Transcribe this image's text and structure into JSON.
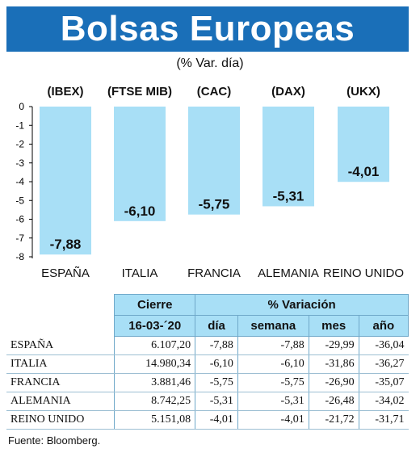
{
  "header": {
    "title": "Bolsas Europeas",
    "subtitle": "(% Var. día)"
  },
  "colors": {
    "title_bg": "#1a6fb8",
    "bar": "#a8dff6",
    "table_header_bg": "#a8dff6"
  },
  "chart_data": {
    "type": "bar",
    "indices": [
      "(IBEX)",
      "(FTSE MIB)",
      "(CAC)",
      "(DAX)",
      "(UKX)"
    ],
    "categories": [
      "ESPAÑA",
      "ITALIA",
      "FRANCIA",
      "ALEMANIA",
      "REINO UNIDO"
    ],
    "values": [
      -7.88,
      -6.1,
      -5.75,
      -5.31,
      -4.01
    ],
    "value_labels": [
      "-7,88",
      "-6,10",
      "-5,75",
      "-5,31",
      "-4,01"
    ],
    "ylim": [
      -8,
      0
    ],
    "yticks": [
      "0",
      "-1",
      "-2",
      "-3",
      "-4",
      "-5",
      "-6",
      "-7",
      "-8"
    ],
    "grid": false
  },
  "table": {
    "header_cierre": "Cierre",
    "header_variacion": "% Variación",
    "date": "16-03-´20",
    "columns": [
      "día",
      "semana",
      "mes",
      "año"
    ],
    "rows": [
      {
        "country": "ESPAÑA",
        "close": "6.107,20",
        "dia": "-7,88",
        "semana": "-7,88",
        "mes": "-29,99",
        "ano": "-36,04"
      },
      {
        "country": "ITALIA",
        "close": "14.980,34",
        "dia": "-6,10",
        "semana": "-6,10",
        "mes": "-31,86",
        "ano": "-36,27"
      },
      {
        "country": "FRANCIA",
        "close": "3.881,46",
        "dia": "-5,75",
        "semana": "-5,75",
        "mes": "-26,90",
        "ano": "-35,07"
      },
      {
        "country": "ALEMANIA",
        "close": "8.742,25",
        "dia": "-5,31",
        "semana": "-5,31",
        "mes": "-26,48",
        "ano": "-34,02"
      },
      {
        "country": "REINO UNIDO",
        "close": "5.151,08",
        "dia": "-4,01",
        "semana": "-4,01",
        "mes": "-21,72",
        "ano": "-31,71"
      }
    ]
  },
  "source": "Fuente: Bloomberg."
}
